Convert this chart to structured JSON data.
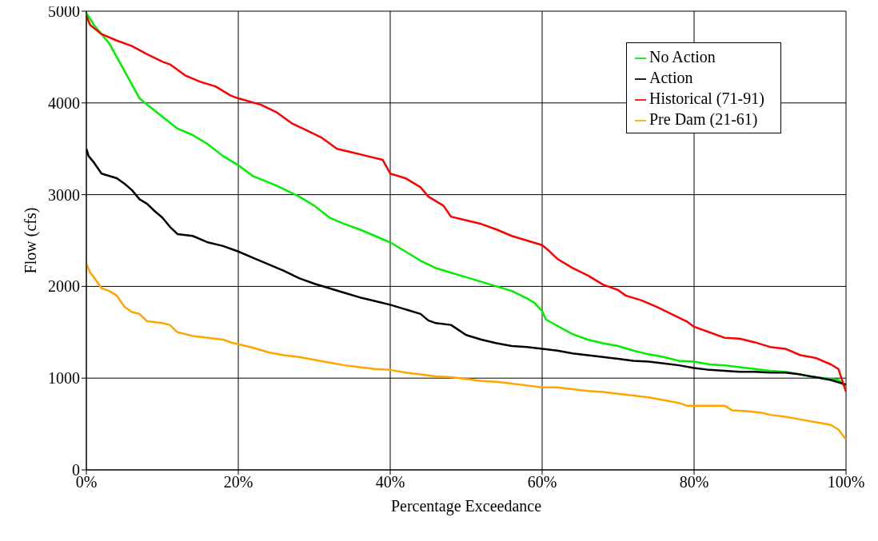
{
  "chart_data": {
    "type": "line",
    "xlabel": "Percentage Exceedance",
    "ylabel": "Flow (cfs)",
    "xlim": [
      0,
      100
    ],
    "xticks": [
      {
        "value": 0,
        "label": "0%"
      },
      {
        "value": 20,
        "label": "20%"
      },
      {
        "value": 40,
        "label": "40%"
      },
      {
        "value": 60,
        "label": "60%"
      },
      {
        "value": 80,
        "label": "80%"
      },
      {
        "value": 100,
        "label": "100%"
      }
    ],
    "ylim": [
      0,
      5000
    ],
    "yticks": [
      0,
      1000,
      2000,
      3000,
      4000,
      5000
    ],
    "grid": true,
    "legend": "top right",
    "marker": "none",
    "line_style": "solid",
    "series": [
      {
        "name": "No Action",
        "color": "#00ee00",
        "x": [
          0,
          1,
          3,
          5,
          6,
          7,
          8,
          10,
          12,
          14,
          16,
          18,
          20,
          22,
          25,
          28,
          30,
          32,
          34,
          36,
          38,
          40,
          42,
          44,
          46,
          48,
          50,
          52,
          54,
          56,
          58,
          59,
          60,
          60.5,
          62,
          64,
          66,
          68,
          70,
          72,
          74,
          76,
          78,
          80,
          82,
          84,
          86,
          88,
          90,
          92,
          94,
          96,
          98,
          99,
          100
        ],
        "values": [
          4980,
          4850,
          4650,
          4350,
          4200,
          4050,
          3980,
          3850,
          3720,
          3650,
          3550,
          3420,
          3320,
          3200,
          3100,
          2980,
          2880,
          2750,
          2680,
          2620,
          2550,
          2480,
          2380,
          2280,
          2200,
          2150,
          2100,
          2050,
          2000,
          1950,
          1870,
          1820,
          1730,
          1640,
          1570,
          1480,
          1420,
          1380,
          1350,
          1300,
          1260,
          1230,
          1190,
          1180,
          1150,
          1140,
          1120,
          1100,
          1080,
          1070,
          1040,
          1010,
          990,
          980,
          900
        ]
      },
      {
        "name": "Action",
        "color": "#000000",
        "x": [
          0,
          0.3,
          1,
          2,
          4,
          5,
          6,
          7,
          8,
          9,
          10,
          11,
          12,
          14,
          16,
          18,
          20,
          22,
          24,
          26,
          28,
          30,
          32,
          34,
          36,
          38,
          40,
          42,
          44,
          45,
          46,
          48,
          50,
          52,
          54,
          56,
          58,
          60,
          62,
          64,
          66,
          68,
          70,
          72,
          74,
          76,
          78,
          80,
          82,
          84,
          86,
          88,
          90,
          92,
          94,
          96,
          98,
          100
        ],
        "values": [
          3500,
          3420,
          3350,
          3230,
          3180,
          3120,
          3050,
          2950,
          2900,
          2820,
          2750,
          2650,
          2570,
          2550,
          2480,
          2440,
          2380,
          2310,
          2240,
          2170,
          2090,
          2030,
          1980,
          1930,
          1880,
          1840,
          1800,
          1750,
          1700,
          1630,
          1600,
          1580,
          1470,
          1420,
          1380,
          1350,
          1340,
          1320,
          1300,
          1270,
          1250,
          1230,
          1210,
          1190,
          1180,
          1160,
          1140,
          1110,
          1090,
          1080,
          1070,
          1070,
          1060,
          1060,
          1040,
          1010,
          980,
          930
        ]
      },
      {
        "name": "Historical (71-91)",
        "color": "#ff0000",
        "x": [
          0,
          0.5,
          2,
          4,
          6,
          8,
          10,
          11,
          13,
          15,
          17,
          19,
          20,
          23,
          25,
          27,
          29,
          31,
          33,
          35,
          37,
          39,
          40,
          42,
          44,
          45,
          47,
          48,
          50,
          52,
          54,
          56,
          58,
          60,
          61,
          62,
          64,
          66,
          68,
          70,
          71,
          73,
          75,
          77,
          79,
          80,
          82,
          84,
          86,
          88,
          90,
          92,
          94,
          96,
          98,
          99,
          100
        ],
        "values": [
          4950,
          4850,
          4750,
          4680,
          4620,
          4530,
          4450,
          4420,
          4300,
          4230,
          4180,
          4080,
          4050,
          3980,
          3900,
          3780,
          3700,
          3620,
          3500,
          3460,
          3420,
          3380,
          3230,
          3180,
          3080,
          2980,
          2880,
          2760,
          2720,
          2680,
          2620,
          2550,
          2500,
          2450,
          2380,
          2300,
          2200,
          2120,
          2020,
          1960,
          1900,
          1850,
          1780,
          1700,
          1620,
          1560,
          1500,
          1440,
          1430,
          1390,
          1340,
          1320,
          1250,
          1220,
          1150,
          1100,
          850
        ]
      },
      {
        "name": "Pre Dam (21-61)",
        "color": "#ffa500",
        "x": [
          0,
          0.5,
          1,
          2,
          3,
          4,
          5,
          6,
          7,
          8,
          10,
          11,
          12,
          14,
          16,
          18,
          19,
          20,
          22,
          24,
          26,
          28,
          30,
          32,
          34,
          36,
          38,
          40,
          42,
          44,
          46,
          48,
          50,
          52,
          54,
          56,
          58,
          60,
          62,
          64,
          66,
          68,
          70,
          72,
          74,
          76,
          78,
          79,
          82,
          84,
          85,
          87,
          89,
          90,
          92,
          94,
          96,
          98,
          99,
          100
        ],
        "values": [
          2250,
          2150,
          2100,
          1980,
          1950,
          1900,
          1780,
          1720,
          1700,
          1620,
          1600,
          1580,
          1500,
          1460,
          1440,
          1420,
          1390,
          1370,
          1330,
          1280,
          1250,
          1230,
          1200,
          1170,
          1140,
          1120,
          1100,
          1090,
          1060,
          1040,
          1020,
          1010,
          990,
          970,
          960,
          940,
          920,
          900,
          900,
          880,
          860,
          850,
          830,
          810,
          790,
          760,
          730,
          700,
          700,
          700,
          650,
          640,
          620,
          600,
          580,
          550,
          520,
          490,
          440,
          330
        ]
      }
    ]
  }
}
